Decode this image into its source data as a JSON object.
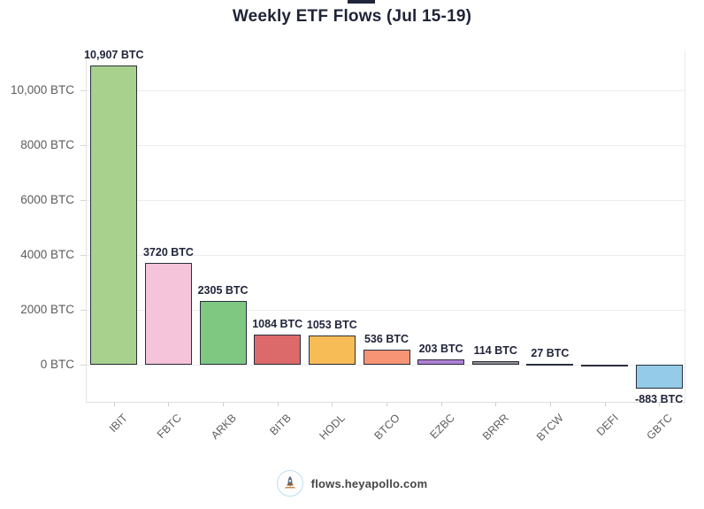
{
  "page": {
    "title": "Weekly ETF Flows (Jul 15-19)"
  },
  "footer": {
    "watermark": "flows.heyapollo.com",
    "logo": "apollo-rocket-icon"
  },
  "colors": {
    "title_text": "#1e2336",
    "bar_border": "#2a2e3c",
    "value_label_text": "#21253a",
    "axis_text": "#5c5c5c",
    "gridline": "#ececec",
    "logo_ring": "#bcdff0",
    "background": "#ffffff"
  },
  "chart_data": {
    "type": "bar",
    "title": "Weekly ETF Flows (Jul 15-19)",
    "xlabel": "",
    "ylabel": "",
    "unit": "BTC",
    "categories": [
      "IBIT",
      "FBTC",
      "ARKB",
      "BITB",
      "HODL",
      "BTCO",
      "EZBC",
      "BRRR",
      "BTCW",
      "DEFI",
      "GBTC"
    ],
    "values": [
      10907,
      3720,
      2305,
      1084,
      1053,
      536,
      203,
      114,
      27,
      0,
      -883
    ],
    "bar_labels": [
      "10,907 BTC",
      "3720 BTC",
      "2305 BTC",
      "1084 BTC",
      "1053 BTC",
      "536 BTC",
      "203 BTC",
      "114 BTC",
      "27 BTC",
      "",
      "-883 BTC"
    ],
    "bar_colors": [
      "#a9d18e",
      "#f5c3da",
      "#7ec881",
      "#dd6a6a",
      "#f8bc57",
      "#f79476",
      "#b07fd4",
      "#8f8f8f",
      "#bdbdbd",
      "#9e9e9e",
      "#93cbe9"
    ],
    "y_ticks": [
      0,
      2000,
      4000,
      6000,
      8000,
      10000
    ],
    "y_tick_labels": [
      "0 BTC",
      "2000 BTC",
      "4000 BTC",
      "6000 BTC",
      "8000 BTC",
      "10,000 BTC"
    ],
    "ylim": [
      -1390,
      11420
    ],
    "grid": "horizontal",
    "legend": "none"
  }
}
